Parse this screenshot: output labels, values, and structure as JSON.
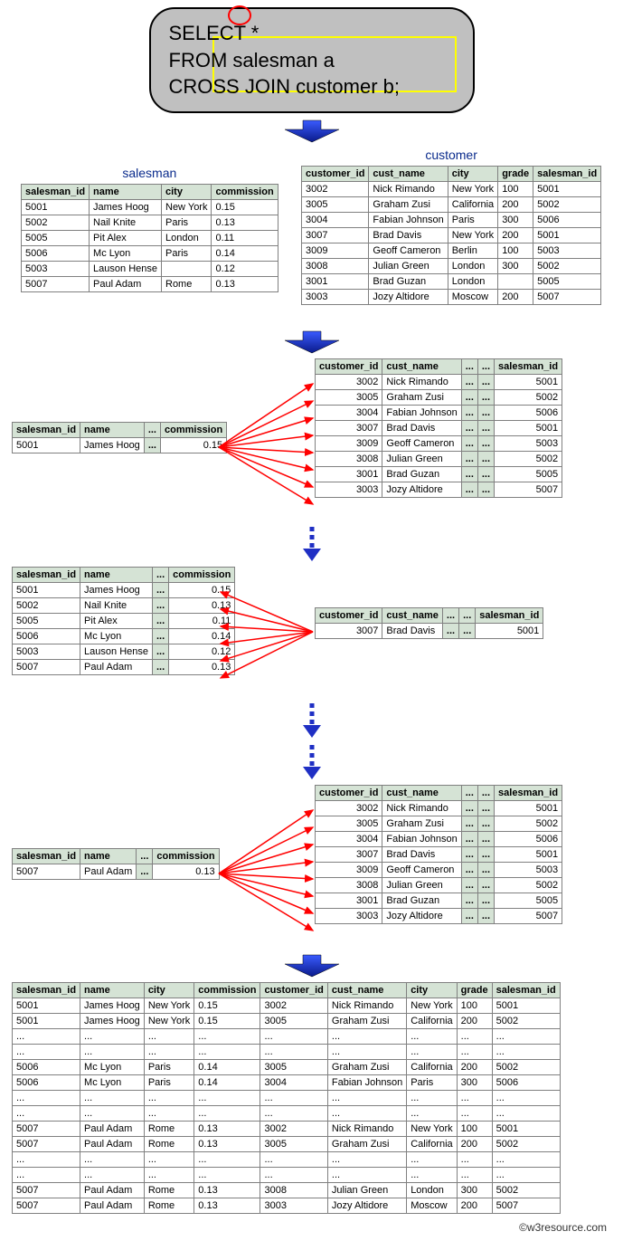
{
  "sql": {
    "line1": "SELECT *",
    "line2": "FROM salesman a",
    "line3": "CROSS JOIN customer b;"
  },
  "salesman": {
    "title": "salesman",
    "headers": [
      "salesman_id",
      "name",
      "city",
      "commission"
    ],
    "rows": [
      [
        "5001",
        "James Hoog",
        "New York",
        "0.15"
      ],
      [
        "5002",
        "Nail Knite",
        "Paris",
        "0.13"
      ],
      [
        "5005",
        "Pit Alex",
        "London",
        "0.11"
      ],
      [
        "5006",
        "Mc Lyon",
        "Paris",
        "0.14"
      ],
      [
        "5003",
        "Lauson Hense",
        "",
        "0.12"
      ],
      [
        "5007",
        "Paul Adam",
        "Rome",
        "0.13"
      ]
    ]
  },
  "customer": {
    "title": "customer",
    "headers": [
      "customer_id",
      "cust_name",
      "city",
      "grade",
      "salesman_id"
    ],
    "rows": [
      [
        "3002",
        "Nick Rimando",
        "New York",
        "100",
        "5001"
      ],
      [
        "3005",
        "Graham Zusi",
        "California",
        "200",
        "5002"
      ],
      [
        "3004",
        "Fabian Johnson",
        "Paris",
        "300",
        "5006"
      ],
      [
        "3007",
        "Brad Davis",
        "New York",
        "200",
        "5001"
      ],
      [
        "3009",
        "Geoff Cameron",
        "Berlin",
        "100",
        "5003"
      ],
      [
        "3008",
        "Julian Green",
        "London",
        "300",
        "5002"
      ],
      [
        "3001",
        "Brad Guzan",
        "London",
        "",
        "5005"
      ],
      [
        "3003",
        "Jozy Altidore",
        "Moscow",
        "200",
        "5007"
      ]
    ]
  },
  "leftSmall1": {
    "headers": [
      "salesman_id",
      "name",
      "...",
      "commission"
    ],
    "rows": [
      [
        "5001",
        "James Hoog",
        "...",
        "0.15"
      ]
    ]
  },
  "rightSmall1": {
    "headers": [
      "customer_id",
      "cust_name",
      "...",
      "...",
      "salesman_id"
    ],
    "rows": [
      [
        "3002",
        "Nick Rimando",
        "...",
        "...",
        "5001"
      ],
      [
        "3005",
        "Graham Zusi",
        "...",
        "...",
        "5002"
      ],
      [
        "3004",
        "Fabian Johnson",
        "...",
        "...",
        "5006"
      ],
      [
        "3007",
        "Brad Davis",
        "...",
        "...",
        "5001"
      ],
      [
        "3009",
        "Geoff Cameron",
        "...",
        "...",
        "5003"
      ],
      [
        "3008",
        "Julian Green",
        "...",
        "...",
        "5002"
      ],
      [
        "3001",
        "Brad Guzan",
        "...",
        "...",
        "5005"
      ],
      [
        "3003",
        "Jozy Altidore",
        "...",
        "...",
        "5007"
      ]
    ]
  },
  "leftSmall2": {
    "headers": [
      "salesman_id",
      "name",
      "...",
      "commission"
    ],
    "rows": [
      [
        "5001",
        "James Hoog",
        "...",
        "0.15"
      ],
      [
        "5002",
        "Nail Knite",
        "...",
        "0.13"
      ],
      [
        "5005",
        "Pit Alex",
        "...",
        "0.11"
      ],
      [
        "5006",
        "Mc Lyon",
        "...",
        "0.14"
      ],
      [
        "5003",
        "Lauson Hense",
        "...",
        "0.12"
      ],
      [
        "5007",
        "Paul Adam",
        "...",
        "0.13"
      ]
    ]
  },
  "rightSmall2": {
    "headers": [
      "customer_id",
      "cust_name",
      "...",
      "...",
      "salesman_id"
    ],
    "rows": [
      [
        "3007",
        "Brad Davis",
        "...",
        "...",
        "5001"
      ]
    ]
  },
  "leftSmall3": {
    "headers": [
      "salesman_id",
      "name",
      "...",
      "commission"
    ],
    "rows": [
      [
        "5007",
        "Paul Adam",
        "...",
        "0.13"
      ]
    ]
  },
  "rightSmall3": {
    "headers": [
      "customer_id",
      "cust_name",
      "...",
      "...",
      "salesman_id"
    ],
    "rows": [
      [
        "3002",
        "Nick Rimando",
        "...",
        "...",
        "5001"
      ],
      [
        "3005",
        "Graham Zusi",
        "...",
        "...",
        "5002"
      ],
      [
        "3004",
        "Fabian Johnson",
        "...",
        "...",
        "5006"
      ],
      [
        "3007",
        "Brad Davis",
        "...",
        "...",
        "5001"
      ],
      [
        "3009",
        "Geoff Cameron",
        "...",
        "...",
        "5003"
      ],
      [
        "3008",
        "Julian Green",
        "...",
        "...",
        "5002"
      ],
      [
        "3001",
        "Brad Guzan",
        "...",
        "...",
        "5005"
      ],
      [
        "3003",
        "Jozy Altidore",
        "...",
        "...",
        "5007"
      ]
    ]
  },
  "result": {
    "headers": [
      "salesman_id",
      "name",
      "city",
      "commission",
      "customer_id",
      "cust_name",
      "city",
      "grade",
      "salesman_id"
    ],
    "rows": [
      [
        "5001",
        "James Hoog",
        "New York",
        "0.15",
        "3002",
        "Nick Rimando",
        "New York",
        "100",
        "5001"
      ],
      [
        "5001",
        "James Hoog",
        "New York",
        "0.15",
        "3005",
        "Graham Zusi",
        "California",
        "200",
        "5002"
      ],
      [
        "...",
        "...",
        "...",
        "...",
        "...",
        "...",
        "...",
        "...",
        "..."
      ],
      [
        "...",
        "...",
        "...",
        "...",
        "...",
        "...",
        "...",
        "...",
        "..."
      ],
      [
        "5006",
        "Mc Lyon",
        "Paris",
        "0.14",
        "3005",
        "Graham Zusi",
        "California",
        "200",
        "5002"
      ],
      [
        "5006",
        "Mc Lyon",
        "Paris",
        "0.14",
        "3004",
        "Fabian Johnson",
        "Paris",
        "300",
        "5006"
      ],
      [
        "...",
        "...",
        "...",
        "...",
        "...",
        "...",
        "...",
        "...",
        "..."
      ],
      [
        "...",
        "...",
        "...",
        "...",
        "...",
        "...",
        "...",
        "...",
        "..."
      ],
      [
        "5007",
        "Paul Adam",
        "Rome",
        "0.13",
        "3002",
        "Nick Rimando",
        "New York",
        "100",
        "5001"
      ],
      [
        "5007",
        "Paul Adam",
        "Rome",
        "0.13",
        "3005",
        "Graham Zusi",
        "California",
        "200",
        "5002"
      ],
      [
        "...",
        "...",
        "...",
        "...",
        "...",
        "...",
        "...",
        "...",
        "..."
      ],
      [
        "...",
        "...",
        "...",
        "...",
        "...",
        "...",
        "...",
        "...",
        "..."
      ],
      [
        "5007",
        "Paul Adam",
        "Rome",
        "0.13",
        "3008",
        "Julian Green",
        "London",
        "300",
        "5002"
      ],
      [
        "5007",
        "Paul Adam",
        "Rome",
        "0.13",
        "3003",
        "Jozy Altidore",
        "Moscow",
        "200",
        "5007"
      ]
    ]
  },
  "footer": "©w3resource.com",
  "colors": {
    "arrowBlue": "#1f2fc4",
    "arrowRed": "#ff0000",
    "headerGreen": "#d5e3d5",
    "sqlBoxBg": "#c0c0c0"
  }
}
